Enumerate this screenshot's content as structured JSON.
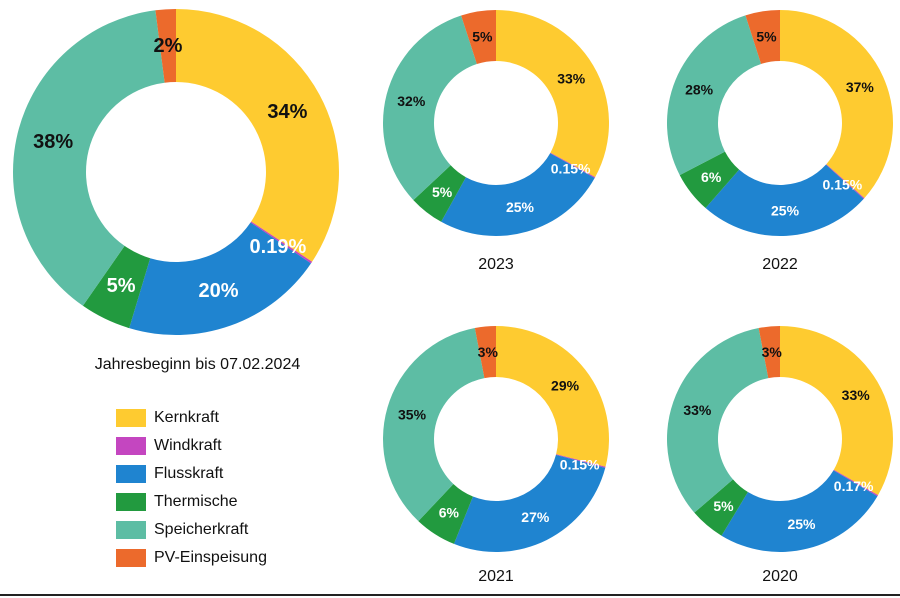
{
  "colors": {
    "Kernkraft": "#fecb30",
    "Windkraft": "#c446c0",
    "Flusskraft": "#1f84d0",
    "Thermische": "#229a3f",
    "Speicherkraft": "#5dbda4",
    "PV-Einspeisung": "#ec6a2c"
  },
  "legend": {
    "items": [
      "Kernkraft",
      "Windkraft",
      "Flusskraft",
      "Thermische",
      "Speicherkraft",
      "PV-Einspeisung"
    ]
  },
  "chart_data": [
    {
      "type": "pie",
      "title": "Jahresbeginn bis 07.02.2024",
      "categories": [
        "Kernkraft",
        "Windkraft",
        "Flusskraft",
        "Thermische",
        "Speicherkraft",
        "PV-Einspeisung"
      ],
      "values": [
        34,
        0.19,
        20,
        5,
        38,
        2
      ],
      "labels": [
        "34%",
        "0.19%",
        "20%",
        "5%",
        "38%",
        "2%"
      ]
    },
    {
      "type": "pie",
      "title": "2023",
      "categories": [
        "Kernkraft",
        "Windkraft",
        "Flusskraft",
        "Thermische",
        "Speicherkraft",
        "PV-Einspeisung"
      ],
      "values": [
        33,
        0.15,
        25,
        5,
        32,
        5
      ],
      "labels": [
        "33%",
        "0.15%",
        "25%",
        "5%",
        "32%",
        "5%"
      ]
    },
    {
      "type": "pie",
      "title": "2022",
      "categories": [
        "Kernkraft",
        "Windkraft",
        "Flusskraft",
        "Thermische",
        "Speicherkraft",
        "PV-Einspeisung"
      ],
      "values": [
        37,
        0.15,
        25,
        6,
        28,
        5
      ],
      "labels": [
        "37%",
        "0.15%",
        "25%",
        "6%",
        "28%",
        "5%"
      ]
    },
    {
      "type": "pie",
      "title": "2021",
      "categories": [
        "Kernkraft",
        "Windkraft",
        "Flusskraft",
        "Thermische",
        "Speicherkraft",
        "PV-Einspeisung"
      ],
      "values": [
        29,
        0.15,
        27,
        6,
        35,
        3
      ],
      "labels": [
        "29%",
        "0.15%",
        "27%",
        "6%",
        "35%",
        "3%"
      ]
    },
    {
      "type": "pie",
      "title": "2020",
      "categories": [
        "Kernkraft",
        "Windkraft",
        "Flusskraft",
        "Thermische",
        "Speicherkraft",
        "PV-Einspeisung"
      ],
      "values": [
        33,
        0.17,
        25,
        5,
        33,
        3
      ],
      "labels": [
        "33%",
        "0.17%",
        "25%",
        "5%",
        "33%",
        "3%"
      ]
    }
  ]
}
